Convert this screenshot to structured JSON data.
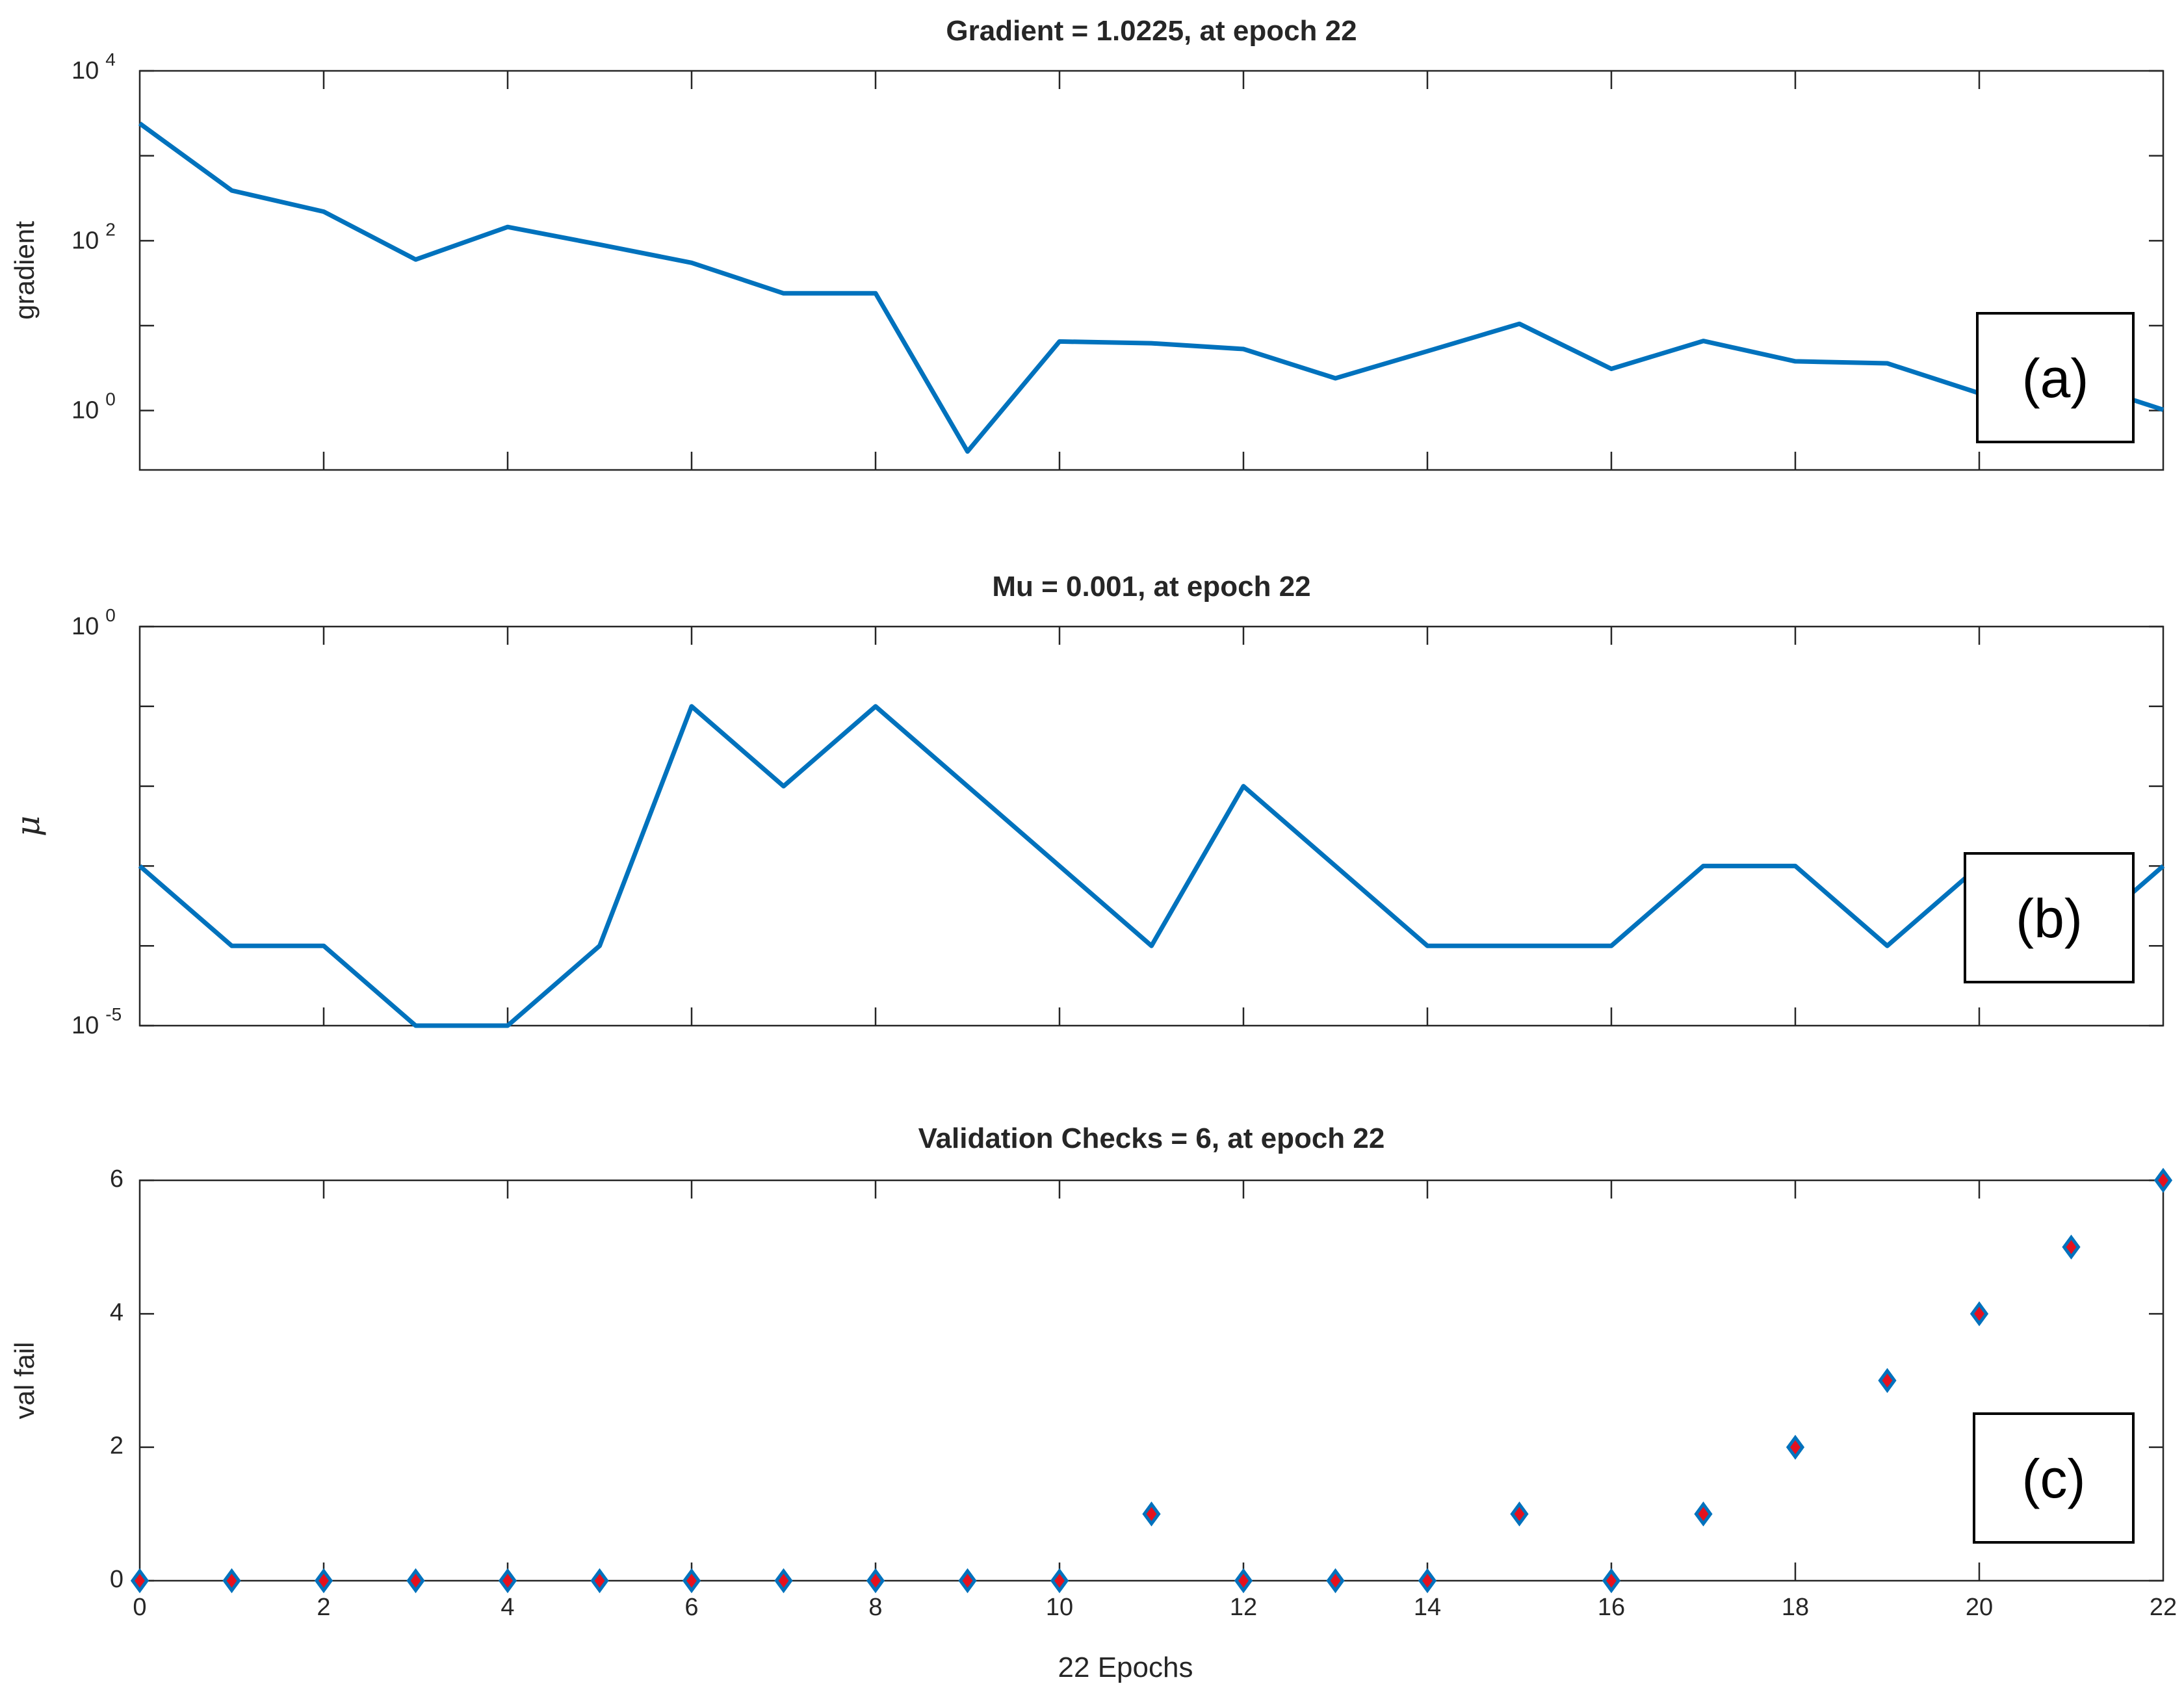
{
  "colors": {
    "line": "#0072BD",
    "marker_fill": "#E5111E",
    "marker_edge": "#0072BD",
    "axes": "#262626"
  },
  "chart_data": [
    {
      "type": "line",
      "title": "Gradient = 1.0225, at epoch 22",
      "ylabel": "gradient",
      "yscale": "log",
      "ylim": [
        0.2,
        10000
      ],
      "yticks": [
        {
          "base": "10",
          "exp": "0"
        },
        {
          "base": "10",
          "exp": "2"
        },
        {
          "base": "10",
          "exp": "4"
        }
      ],
      "ytick_values": [
        1,
        100,
        10000
      ],
      "x": [
        0,
        1,
        2,
        3,
        4,
        5,
        6,
        7,
        8,
        9,
        10,
        11,
        12,
        13,
        14,
        15,
        16,
        17,
        18,
        19,
        20,
        21,
        22
      ],
      "values": [
        2400,
        390,
        220,
        60,
        145,
        90,
        55,
        24,
        24,
        0.33,
        6.5,
        6.2,
        5.3,
        2.4,
        5.0,
        10.5,
        3.1,
        6.6,
        3.8,
        3.6,
        1.6,
        2.3,
        1.0225
      ],
      "panel_label": "(a)"
    },
    {
      "type": "line",
      "title": "Mu = 0.001, at epoch 22",
      "ylabel": "μ",
      "yscale": "log",
      "ylim": [
        1e-05,
        1
      ],
      "yticks": [
        {
          "base": "10",
          "exp": "-5"
        },
        {
          "base": "10",
          "exp": "0"
        }
      ],
      "ytick_values": [
        1e-05,
        1
      ],
      "x": [
        0,
        1,
        2,
        3,
        4,
        5,
        6,
        7,
        8,
        9,
        10,
        11,
        12,
        13,
        14,
        15,
        16,
        17,
        18,
        19,
        20,
        21,
        22
      ],
      "values": [
        0.001,
        0.0001,
        0.0001,
        1e-05,
        1e-05,
        0.0001,
        0.1,
        0.01,
        0.1,
        0.01,
        0.001,
        0.0001,
        0.01,
        0.001,
        0.0001,
        0.0001,
        0.0001,
        0.001,
        0.001,
        0.0001,
        0.001,
        0.0001,
        0.001
      ],
      "panel_label": "(b)"
    },
    {
      "type": "scatter",
      "title": "Validation Checks = 6, at epoch 22",
      "ylabel": "val fail",
      "xlabel": "22 Epochs",
      "ylim": [
        0,
        6
      ],
      "xlim": [
        0,
        22
      ],
      "yticks": [
        "0",
        "2",
        "4",
        "6"
      ],
      "ytick_values": [
        0,
        2,
        4,
        6
      ],
      "xticks": [
        "0",
        "2",
        "4",
        "6",
        "8",
        "10",
        "12",
        "14",
        "16",
        "18",
        "20",
        "22"
      ],
      "xtick_values": [
        0,
        2,
        4,
        6,
        8,
        10,
        12,
        14,
        16,
        18,
        20,
        22
      ],
      "x": [
        0,
        1,
        2,
        3,
        4,
        5,
        6,
        7,
        8,
        9,
        10,
        11,
        12,
        13,
        14,
        15,
        16,
        17,
        18,
        19,
        20,
        21,
        22
      ],
      "values": [
        0,
        0,
        0,
        0,
        0,
        0,
        0,
        0,
        0,
        0,
        0,
        1,
        0,
        0,
        0,
        1,
        0,
        1,
        2,
        3,
        4,
        5,
        6
      ],
      "panel_label": "(c)"
    }
  ]
}
